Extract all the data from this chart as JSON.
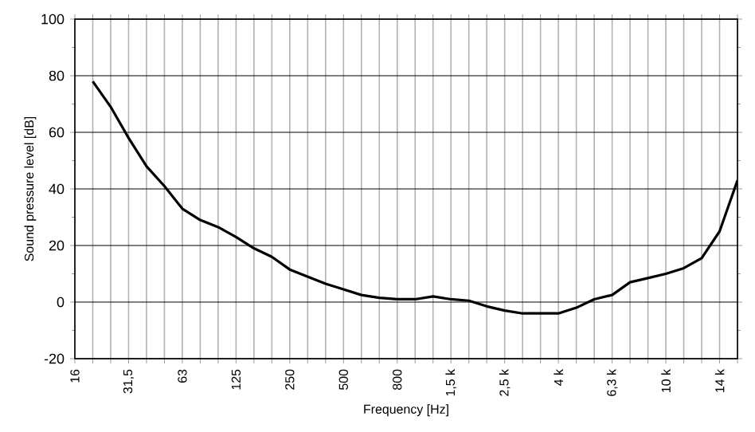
{
  "chart_data": {
    "type": "line",
    "xlabel": "Frequency [Hz]",
    "ylabel": "Sound pressure level [dB]",
    "categories": [
      "16",
      null,
      null,
      "31,5",
      null,
      null,
      "63",
      null,
      null,
      "125",
      null,
      null,
      "250",
      null,
      null,
      "500",
      null,
      null,
      "800",
      null,
      null,
      "1,5 k",
      null,
      null,
      "2,5 k",
      null,
      null,
      "4 k",
      null,
      null,
      "6,3 k",
      null,
      null,
      "10 k",
      null,
      null,
      "14 k",
      null
    ],
    "series": [
      {
        "color": "#000000",
        "values": [
          null,
          78,
          69,
          58,
          48,
          41,
          33,
          29,
          26.5,
          23,
          19,
          16,
          11.5,
          9,
          6.5,
          4.5,
          2.5,
          1.5,
          1,
          1,
          2,
          1,
          0.5,
          -1.5,
          -3,
          -4,
          -4,
          -4,
          -2,
          1,
          2.5,
          7,
          8.5,
          10,
          12,
          15.5,
          25,
          43
        ]
      }
    ],
    "ylim": [
      -20,
      100
    ],
    "yticks": [
      -20,
      {
        "value": -10,
        "label": null
      },
      0,
      {
        "value": 10,
        "label": null
      },
      20,
      {
        "value": 30,
        "label": null
      },
      40,
      {
        "value": 50,
        "label": null
      },
      60,
      {
        "value": 70,
        "label": null
      },
      80,
      {
        "value": 90,
        "label": null
      },
      100
    ],
    "grid": true,
    "marker": "none",
    "line_style": "solid"
  }
}
